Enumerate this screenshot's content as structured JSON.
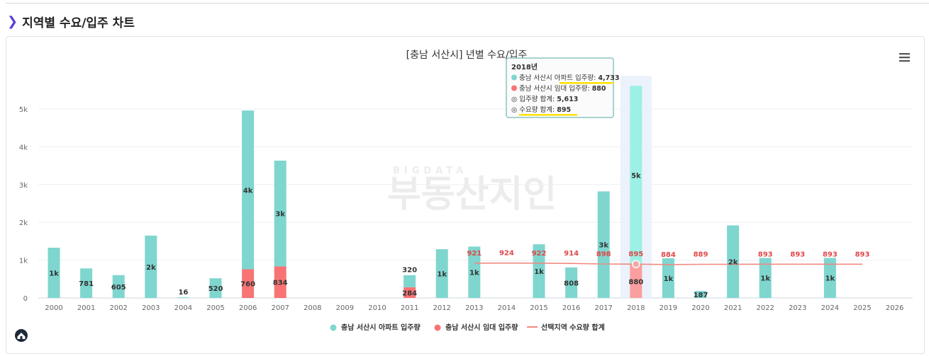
{
  "section": {
    "title": "지역별 수요/입주 차트"
  },
  "colors": {
    "apt": "#7ed6cf",
    "rent": "#f87474",
    "demand": "#ef8a80",
    "accent": "#5b3fd6",
    "highlight": "#ffe000"
  },
  "icons": {
    "chevron": "chevron-right-icon",
    "menu": "hamburger-menu-icon",
    "logo": "home-logo-icon"
  },
  "watermark": {
    "small": "BIGDATA",
    "big": "부동산지인"
  },
  "chart_data": {
    "type": "bar",
    "title": "[충남 서산시] 년별 수요/입주",
    "categories": [
      "2000",
      "2001",
      "2002",
      "2003",
      "2004",
      "2005",
      "2006",
      "2007",
      "2008",
      "2009",
      "2010",
      "2011",
      "2012",
      "2013",
      "2014",
      "2015",
      "2016",
      "2017",
      "2018",
      "2019",
      "2020",
      "2021",
      "2022",
      "2023",
      "2024",
      "2025",
      "2026"
    ],
    "series": [
      {
        "name": "충남 서산시 아파트 입주량",
        "type": "bar",
        "stacked": true,
        "values": [
          1330,
          781,
          605,
          1650,
          16,
          520,
          4200,
          2800,
          0,
          0,
          0,
          320,
          1290,
          1360,
          0,
          1420,
          808,
          2820,
          4733,
          1050,
          187,
          1920,
          1060,
          0,
          1060,
          0,
          0
        ],
        "labels": [
          "1k",
          "781",
          "605",
          "2k",
          "16",
          "520",
          "4k",
          "3k",
          "",
          "",
          "",
          "320",
          "1k",
          "1k",
          "",
          "1k",
          "808",
          "3k",
          "5k",
          "1k",
          "187",
          "2k",
          "1k",
          "",
          "1k",
          "",
          ""
        ]
      },
      {
        "name": "충남 서산시 임대 입주량",
        "type": "bar",
        "stacked": true,
        "values": [
          0,
          0,
          0,
          0,
          0,
          0,
          760,
          834,
          0,
          0,
          0,
          284,
          0,
          0,
          0,
          0,
          0,
          0,
          880,
          0,
          0,
          0,
          0,
          0,
          0,
          0,
          0
        ],
        "labels": [
          "",
          "",
          "",
          "",
          "",
          "",
          "760",
          "834",
          "",
          "",
          "",
          "284",
          "",
          "",
          "",
          "",
          "",
          "",
          "880",
          "",
          "",
          "",
          "",
          "",
          "",
          "",
          ""
        ]
      },
      {
        "name": "선택지역 수요량 합계",
        "type": "line",
        "values": [
          null,
          null,
          null,
          null,
          null,
          null,
          null,
          null,
          null,
          null,
          null,
          null,
          null,
          921,
          924,
          922,
          914,
          898,
          895,
          884,
          889,
          null,
          893,
          893,
          893,
          893,
          null
        ]
      }
    ],
    "y_ticks": [
      "0",
      "1k",
      "2k",
      "3k",
      "4k",
      "5k"
    ],
    "ylim": [
      0,
      5900
    ],
    "grid": true,
    "legend_position": "bottom-center",
    "tooltip": {
      "title": "2018년",
      "rows": [
        {
          "label": "충남 서산시 아파트 입주량: ",
          "value": "4,733"
        },
        {
          "label": "충남 서산시 임대 입주량: ",
          "value": "880"
        },
        {
          "label": "◎ 입주량 합계: ",
          "value": "5,613"
        },
        {
          "label": "◎ 수요량 합계: ",
          "value": "895"
        }
      ]
    }
  }
}
